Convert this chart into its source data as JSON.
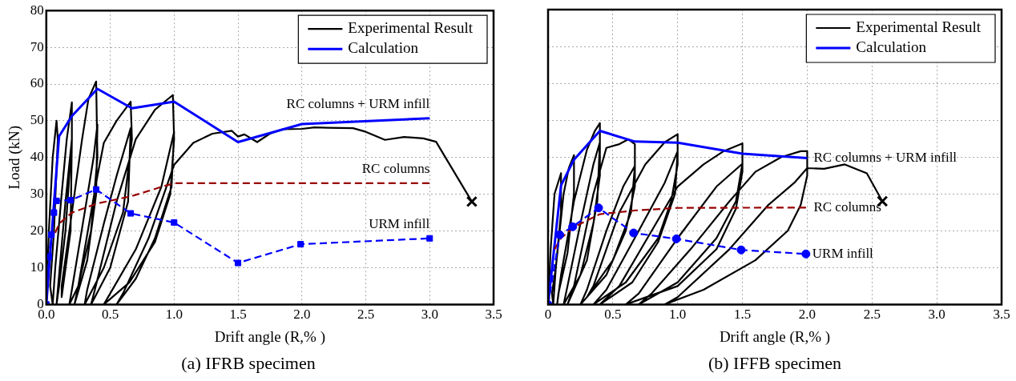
{
  "chart_data": [
    {
      "type": "line",
      "title": "(a) IFRB specimen",
      "xlabel": "Drift angle (R,% )",
      "ylabel": "Load (kN)",
      "xlim": [
        0,
        3.5
      ],
      "xticks": [
        {
          "value": 0,
          "label": "0.0"
        },
        0.5,
        {
          "value": 1,
          "label": "1.0"
        },
        1.5,
        {
          "value": 2,
          "label": "2.0"
        },
        2.5,
        {
          "value": 3,
          "label": "3.0"
        },
        3.5
      ],
      "ylim": [
        0,
        80
      ],
      "yticks": [
        0,
        10,
        20,
        30,
        40,
        50,
        60,
        70,
        80
      ],
      "grid": true,
      "legend": "top right",
      "series": [
        {
          "name": "Experimental Result",
          "color": "#000000",
          "line_style": "solid",
          "marker": "none",
          "x": [
            0,
            0.02,
            0.05,
            0.08,
            0.09,
            0.06,
            0.03,
            0.05,
            0.07,
            0.12,
            0.16,
            0.2,
            0.2,
            0.15,
            0.1,
            0.08,
            0.1,
            0.15,
            0.2,
            0.19,
            0.12,
            0.12,
            0.2,
            0.28,
            0.33,
            0.39,
            0.4,
            0.35,
            0.25,
            0.18,
            0.2,
            0.3,
            0.37,
            0.4,
            0.39,
            0.32,
            0.22,
            0.25,
            0.4,
            0.45,
            0.55,
            0.66,
            0.67,
            0.6,
            0.45,
            0.3,
            0.32,
            0.45,
            0.55,
            0.66,
            0.64,
            0.5,
            0.35,
            0.38,
            0.55,
            0.7,
            0.85,
            0.99,
            1.0,
            0.97,
            0.85,
            0.65,
            0.45,
            0.5,
            0.7,
            0.9,
            1.0,
            0.98,
            0.85,
            0.7,
            0.55,
            0.6,
            0.8,
            0.95,
            1.0,
            1.15,
            1.3,
            1.45,
            1.5,
            1.55,
            1.65,
            1.75,
            1.85,
            2.0,
            2.1,
            2.2,
            2.4,
            2.5,
            2.65,
            2.8,
            2.95,
            3.05,
            3.33
          ],
          "values": [
            0,
            20,
            40,
            50,
            45,
            20,
            5,
            0,
            10,
            30,
            45,
            55,
            45,
            20,
            5,
            0,
            8,
            28,
            45,
            20,
            2,
            5,
            25,
            45,
            56,
            60.7,
            40,
            20,
            5,
            0,
            4,
            25,
            40,
            49,
            30,
            12,
            0,
            5,
            35,
            44,
            50,
            55.2,
            45,
            25,
            10,
            0,
            4,
            22,
            35,
            48,
            28,
            10,
            0,
            4,
            28,
            45,
            53,
            57,
            45,
            30,
            17,
            6,
            0,
            3,
            15,
            32,
            47,
            32,
            18,
            7,
            0,
            3,
            18,
            33,
            38,
            44,
            46.5,
            47.3,
            45.7,
            46.3,
            44.2,
            46.5,
            47.7,
            47.8,
            48.2,
            48.1,
            48,
            47,
            44.8,
            45.6,
            45.2,
            44.3,
            28
          ]
        },
        {
          "name": "Calculation",
          "color": "#0000ff",
          "line_style": "solid",
          "marker": "none",
          "x": [
            0,
            0.1,
            0.2,
            0.4,
            0.67,
            1.0,
            1.5,
            2.0,
            3.0
          ],
          "values": [
            0,
            45.8,
            51.3,
            58.7,
            53.4,
            55.2,
            44.2,
            49.1,
            50.7
          ]
        },
        {
          "color": "#990000",
          "line_style": "dashed",
          "marker": "none",
          "x": [
            0.07,
            0.1,
            0.2,
            0.4,
            0.67,
            0.9,
            1.0,
            3.0
          ],
          "values": [
            19.5,
            22,
            25,
            27.5,
            29.5,
            32,
            33,
            33
          ]
        },
        {
          "color": "#0000ff",
          "line_style": "dashed",
          "marker": "square",
          "x": [
            0,
            0.02,
            0.04,
            0.06,
            0.08,
            0.19,
            0.39,
            0.66,
            1.0,
            1.5,
            1.99,
            3.0
          ],
          "values": [
            0,
            13,
            19,
            25,
            28.2,
            28.4,
            31.3,
            24.8,
            22.3,
            11.3,
            16.4,
            18
          ]
        },
        {
          "type": "scatter",
          "color": "#000000",
          "marker": "cross",
          "x": [
            3.33
          ],
          "values": [
            28
          ]
        }
      ],
      "annotations": [
        "RC columns + URM infill",
        "RC columns",
        "URM infill"
      ]
    },
    {
      "type": "line",
      "title": "(b) IFFB specimen",
      "xlabel": "Drift angle (R,% )",
      "xlim": [
        0,
        3.5
      ],
      "xticks": [
        0,
        0.5,
        {
          "value": 1,
          "label": "1.0"
        },
        1.5,
        {
          "value": 2,
          "label": "2.0"
        },
        2.5,
        {
          "value": 3,
          "label": "3.0"
        },
        3.5
      ],
      "ylim": [
        0,
        80
      ],
      "yticks": [
        0,
        10,
        20,
        30,
        40,
        50,
        60,
        70,
        80
      ],
      "tick_labels": "x",
      "grid": true,
      "legend": "top right",
      "series": [
        {
          "name": "Experimental Result",
          "color": "#000000",
          "line_style": "solid",
          "marker": "none",
          "x": [
            0,
            0.02,
            0.05,
            0.1,
            0.1,
            0.06,
            0.03,
            0.04,
            0.06,
            0.12,
            0.16,
            0.2,
            0.2,
            0.15,
            0.08,
            0.07,
            0.1,
            0.2,
            0.3,
            0.36,
            0.4,
            0.4,
            0.35,
            0.25,
            0.12,
            0.15,
            0.25,
            0.35,
            0.4,
            0.38,
            0.3,
            0.15,
            0.2,
            0.35,
            0.45,
            0.55,
            0.62,
            0.67,
            0.67,
            0.6,
            0.45,
            0.25,
            0.3,
            0.45,
            0.58,
            0.67,
            0.64,
            0.5,
            0.3,
            0.35,
            0.55,
            0.75,
            0.9,
            1.0,
            1.0,
            0.95,
            0.85,
            0.6,
            0.35,
            0.45,
            0.7,
            0.9,
            1.0,
            0.98,
            0.85,
            0.65,
            0.4,
            0.55,
            0.8,
            1.0,
            1.2,
            1.35,
            1.5,
            1.5,
            1.45,
            1.3,
            1.0,
            0.6,
            0.7,
            1.0,
            1.3,
            1.5,
            1.45,
            1.3,
            1.0,
            0.7,
            0.8,
            1.1,
            1.4,
            1.6,
            1.8,
            1.95,
            2.0,
            2.0,
            1.95,
            1.85,
            1.6,
            1.2,
            0.9,
            1.0,
            1.4,
            1.7,
            1.9,
            2.0,
            2.13,
            2.29,
            2.46,
            2.58
          ],
          "values": [
            0,
            15,
            30,
            35.6,
            25,
            10,
            3,
            0,
            10,
            30,
            37,
            40.5,
            30,
            14,
            3,
            0,
            8,
            28,
            42,
            47,
            49.2,
            35,
            22,
            8,
            0,
            5,
            22,
            38,
            44,
            28,
            12,
            0,
            5,
            30,
            42.5,
            43.5,
            44.8,
            43.5,
            32,
            20,
            8,
            0,
            4,
            20,
            32,
            37.6,
            25,
            12,
            2,
            5,
            25,
            38,
            44,
            46.2,
            38,
            28,
            18,
            6,
            0,
            4,
            20,
            33,
            41.6,
            30,
            17,
            6,
            0,
            5,
            20,
            32,
            38,
            41.5,
            43.7,
            36,
            26,
            15,
            5,
            0,
            3,
            18,
            32,
            38.2,
            28,
            18,
            6,
            0,
            3,
            15,
            28,
            36,
            40,
            41.6,
            41.6,
            35,
            27,
            20,
            12,
            4,
            0,
            2,
            15,
            27,
            33,
            37,
            36.8,
            38,
            35.6,
            28
          ]
        },
        {
          "name": "Calculation",
          "color": "#0000ff",
          "line_style": "solid",
          "marker": "none",
          "x": [
            0,
            0.1,
            0.2,
            0.4,
            0.67,
            1.0,
            1.5,
            2.0
          ],
          "values": [
            0,
            32.3,
            39.3,
            47.1,
            44.2,
            43.9,
            40.9,
            39.7
          ]
        },
        {
          "color": "#990000",
          "line_style": "dashed",
          "marker": "none",
          "x": [
            0.05,
            0.1,
            0.2,
            0.4,
            0.67,
            1.0,
            2.0
          ],
          "values": [
            15,
            18,
            21,
            24.5,
            25.5,
            26.2,
            26.3
          ]
        },
        {
          "color": "#0000ff",
          "line_style": "dashed",
          "marker": "circle",
          "x": [
            0,
            0.09,
            0.19,
            0.39,
            0.66,
            0.99,
            1.49,
            1.99
          ],
          "values": [
            0,
            18.9,
            21.1,
            26.2,
            19.4,
            17.8,
            14.8,
            13.7
          ]
        },
        {
          "type": "scatter",
          "color": "#000000",
          "marker": "cross",
          "x": [
            2.58
          ],
          "values": [
            28
          ]
        }
      ],
      "annotations": [
        "RC columns + URM infill",
        "RC columns",
        "URM infill"
      ]
    }
  ]
}
